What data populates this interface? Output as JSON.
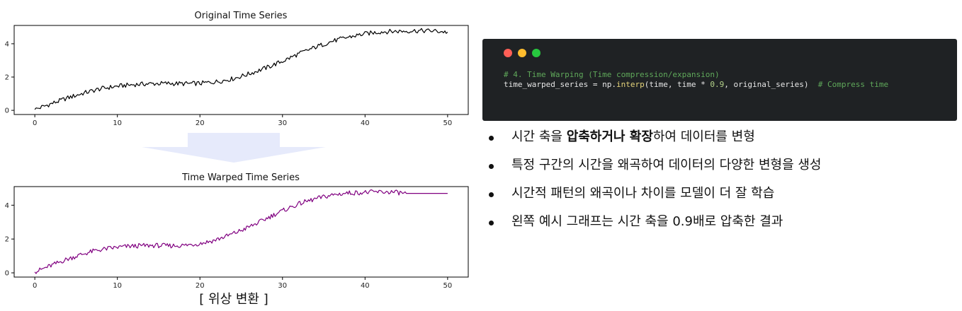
{
  "chart_data": [
    {
      "type": "line",
      "title": "Original Time Series",
      "x_ticks": [
        0,
        10,
        20,
        30,
        40,
        50
      ],
      "y_ticks": [
        0,
        2,
        4
      ],
      "xlim": [
        -2.5,
        52.5
      ],
      "ylim": [
        -0.25,
        5.1
      ],
      "grid": false,
      "series": [
        {
          "color": "#000000",
          "x": [
            0,
            2,
            4,
            6,
            8,
            10,
            12,
            14,
            16,
            18,
            20,
            22,
            24,
            26,
            28,
            30,
            32,
            34,
            36,
            38,
            40,
            42,
            44,
            46,
            48,
            50
          ],
          "y": [
            0.05,
            0.4,
            0.75,
            1.05,
            1.3,
            1.45,
            1.55,
            1.6,
            1.62,
            1.6,
            1.62,
            1.72,
            1.9,
            2.2,
            2.55,
            2.95,
            3.4,
            3.8,
            4.15,
            4.4,
            4.6,
            4.72,
            4.75,
            4.78,
            4.78,
            4.7
          ]
        }
      ]
    },
    {
      "type": "line",
      "title": "Time Warped Time Series",
      "x_ticks": [
        0,
        10,
        20,
        30,
        40,
        50
      ],
      "y_ticks": [
        0,
        2,
        4
      ],
      "xlim": [
        -2.5,
        52.5
      ],
      "ylim": [
        -0.25,
        5.1
      ],
      "grid": false,
      "series": [
        {
          "color": "#800080",
          "x": [
            0,
            1.8,
            3.6,
            5.4,
            7.2,
            9,
            10.8,
            12.6,
            14.4,
            16.2,
            18,
            19.8,
            21.6,
            23.4,
            25.2,
            27,
            28.8,
            30.6,
            32.4,
            34.2,
            36,
            37.8,
            39.6,
            41.4,
            43.2,
            45,
            50
          ],
          "y": [
            0.05,
            0.4,
            0.75,
            1.05,
            1.3,
            1.45,
            1.55,
            1.6,
            1.62,
            1.6,
            1.62,
            1.72,
            1.9,
            2.2,
            2.55,
            2.95,
            3.4,
            3.8,
            4.15,
            4.4,
            4.6,
            4.72,
            4.75,
            4.78,
            4.78,
            4.7,
            4.7
          ]
        }
      ]
    }
  ],
  "caption": "[ 위상 변환 ]",
  "arrow_color": "#e6eafb",
  "code_panel": {
    "dot_colors": [
      "#ff5f56",
      "#ffbd2e",
      "#27c93f"
    ],
    "comment_line": "# 4. Time Warping (Time compression/expansion)",
    "code_var": "time_warped_series = np.",
    "code_func": "interp",
    "code_args_1": "(time, time * ",
    "code_num": "0.9",
    "code_args_2": ", original_series)  ",
    "code_trailing_comment": "# Compress time"
  },
  "bullets": [
    {
      "pre": "시간 축을 ",
      "bold": "압축하거나 확장",
      "post": "하여 데이터를 변형"
    },
    {
      "pre": "특정 구간의 시간을 왜곡하여 데이터의 다양한 변형을 생성",
      "bold": "",
      "post": ""
    },
    {
      "pre": "시간적 패턴의 왜곡이나 차이를 모델이 더 잘 학습",
      "bold": "",
      "post": ""
    },
    {
      "pre": "왼쪽 예시 그래프는 시간 축을 0.9배로 압축한 결과",
      "bold": "",
      "post": ""
    }
  ]
}
